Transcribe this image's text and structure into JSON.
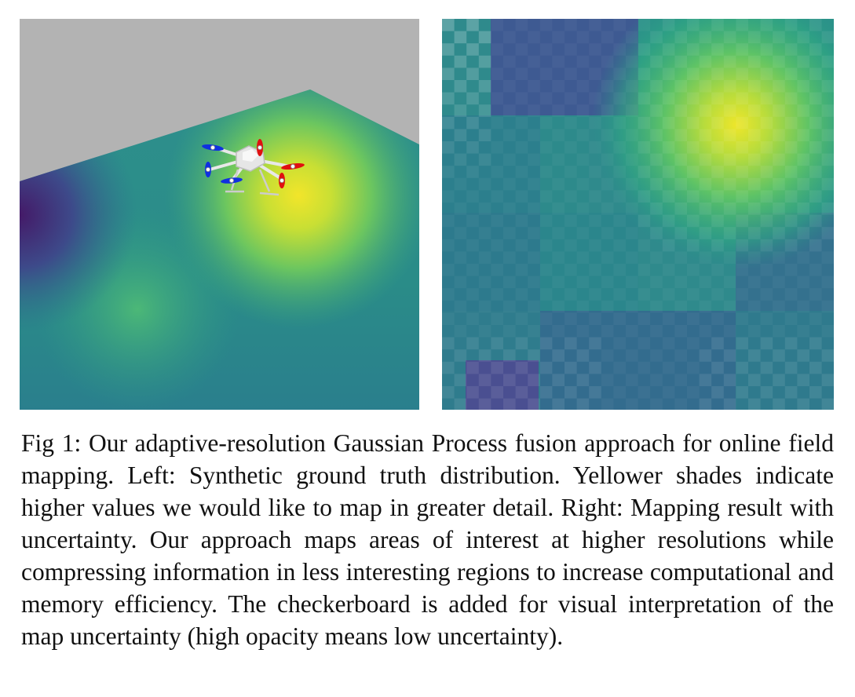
{
  "figure": {
    "caption": "Fig 1: Our adaptive-resolution Gaussian Process fusion approach for online field mapping. Left: Synthetic ground truth distribution. Yellower shades indicate higher values we would like to map in greater detail. Right: Mapping result with uncertainty. Our approach maps areas of interest at higher resolutions while compressing information in less interesting regions to increase computational and memory efficiency. The checkerboard is added for visual interpretation of the map uncertainty (high opacity means low uncertainty)."
  },
  "colors": {
    "background_sky": "#b3b3b3",
    "viridis_dark": "#46196b",
    "viridis_teal": "#2a8a8a",
    "viridis_green": "#4fbf6e",
    "viridis_yellow": "#f0e426",
    "rotor_red": "#e01010",
    "rotor_blue": "#1030e0"
  },
  "icons": {
    "uav": "hexacopter-drone-icon"
  }
}
